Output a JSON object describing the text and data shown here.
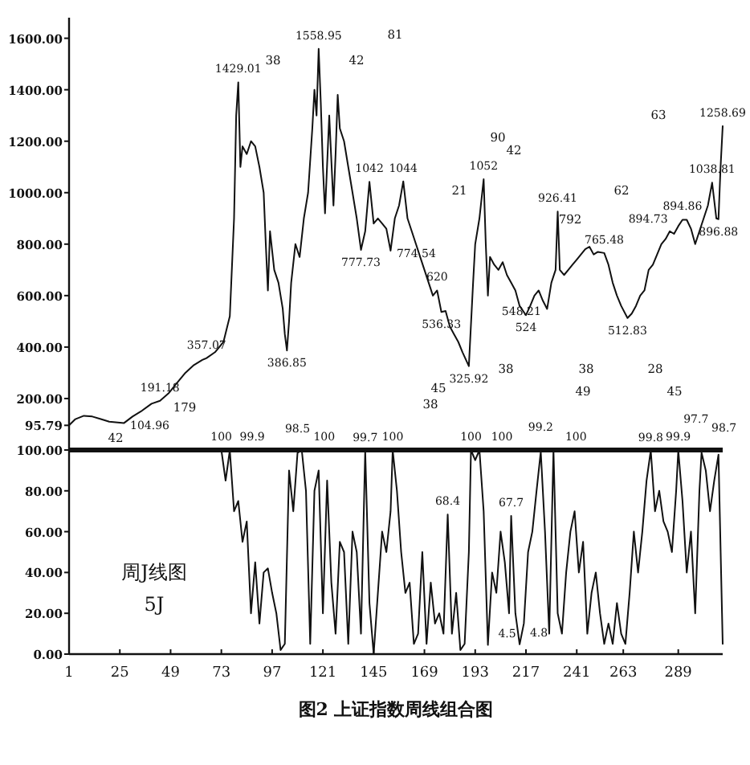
{
  "chart_data": [
    {
      "type": "line",
      "xlim": [
        1,
        310
      ],
      "ylim": [
        0,
        1680
      ],
      "tick_labels": "y",
      "yticks": [
        {
          "value": 95.79,
          "label": "95.79"
        },
        {
          "value": 200,
          "label": "200.00"
        },
        {
          "value": 400,
          "label": "400.00"
        },
        {
          "value": 600,
          "label": "600.00"
        },
        {
          "value": 800,
          "label": "800.00"
        },
        {
          "value": 1000,
          "label": "1000.00"
        },
        {
          "value": 1200,
          "label": "1200.00"
        },
        {
          "value": 1400,
          "label": "1400.00"
        },
        {
          "value": 1600,
          "label": "1600.00"
        }
      ],
      "series": [
        {
          "color": "#111111",
          "x": [
            1,
            4,
            8,
            12,
            16,
            20,
            27,
            31,
            35,
            40,
            44,
            48,
            52,
            56,
            60,
            64,
            66,
            70,
            74,
            77,
            79,
            80,
            81,
            82,
            83,
            85,
            87,
            89,
            91,
            93,
            94,
            95,
            96,
            98,
            100,
            102,
            103,
            104,
            105,
            106,
            108,
            110,
            112,
            114,
            116,
            117,
            118,
            119,
            120,
            121,
            122,
            124,
            126,
            127,
            128,
            129,
            131,
            133,
            135,
            137,
            139,
            141,
            143,
            145,
            147,
            149,
            151,
            153,
            155,
            157,
            159,
            161,
            163,
            165,
            167,
            169,
            171,
            173,
            175,
            177,
            179,
            181,
            183,
            185,
            187,
            190,
            192,
            193,
            195,
            197,
            198,
            199,
            200,
            202,
            204,
            206,
            208,
            210,
            212,
            214,
            217,
            219,
            221,
            223,
            225,
            227,
            229,
            231,
            232,
            233,
            235,
            237,
            239,
            241,
            243,
            245,
            247,
            249,
            251,
            254,
            256,
            258,
            260,
            262,
            265,
            267,
            269,
            271,
            273,
            275,
            277,
            279,
            281,
            283,
            285,
            287,
            289,
            291,
            293,
            295,
            297,
            299,
            301,
            303,
            305,
            307,
            308,
            309,
            310
          ],
          "values": [
            95.79,
            120,
            133,
            130,
            120,
            110,
            104.96,
            130,
            150,
            180,
            191.18,
            220,
            260,
            300,
            330,
            350,
            357.07,
            380,
            420,
            520,
            900,
            1300,
            1429.01,
            1100,
            1180,
            1150,
            1200,
            1180,
            1100,
            1000,
            800,
            620,
            850,
            700,
            650,
            550,
            450,
            386.85,
            500,
            650,
            800,
            750,
            900,
            1000,
            1250,
            1400,
            1300,
            1558.95,
            1350,
            1100,
            920,
            1300,
            950,
            1150,
            1380,
            1250,
            1200,
            1100,
            1000,
            900,
            777.73,
            850,
            1042,
            880,
            900,
            880,
            860,
            774.54,
            900,
            950,
            1044,
            900,
            850,
            800,
            750,
            700,
            650,
            600,
            620,
            536.33,
            540,
            480,
            450,
            420,
            380,
            325.92,
            650,
            800,
            900,
            1052,
            800,
            600,
            750,
            720,
            700,
            730,
            680,
            650,
            620,
            560,
            524,
            560,
            600,
            620,
            580,
            548.21,
            650,
            700,
            926.41,
            700,
            680,
            700,
            720,
            740,
            760,
            780,
            790,
            760,
            770,
            765.48,
            720,
            650,
            600,
            560,
            512.83,
            530,
            560,
            600,
            620,
            700,
            720,
            760,
            800,
            820,
            850,
            840,
            870,
            894.86,
            894.73,
            860,
            800,
            850,
            900,
            950,
            1038.81,
            900,
            896.88,
            1100,
            1258.69
          ],
          "value_labels": [
            null,
            null,
            null,
            null,
            null,
            null,
            "104.96",
            null,
            null,
            null,
            "191.18",
            null,
            null,
            null,
            null,
            null,
            "357.07",
            null,
            null,
            null,
            null,
            null,
            "1429.01",
            null,
            null,
            null,
            null,
            null,
            null,
            null,
            null,
            null,
            null,
            null,
            null,
            null,
            null,
            "386.85",
            null,
            null,
            null,
            null,
            null,
            null,
            null,
            null,
            null,
            "1558.95",
            null,
            null,
            null,
            null,
            null,
            null,
            null,
            null,
            null,
            null,
            null,
            null,
            "777.73",
            null,
            "1042",
            null,
            null,
            null,
            null,
            "774.54",
            null,
            null,
            "1044",
            null,
            null,
            null,
            null,
            null,
            null,
            null,
            "620",
            "536.33",
            null,
            null,
            null,
            null,
            null,
            "325.92",
            null,
            null,
            null,
            "1052",
            null,
            null,
            null,
            null,
            null,
            null,
            null,
            null,
            null,
            null,
            "524",
            null,
            null,
            null,
            null,
            "548.21",
            null,
            null,
            "926.41",
            null,
            null,
            null,
            null,
            null,
            null,
            null,
            null,
            null,
            null,
            "765.48",
            null,
            null,
            null,
            null,
            "512.83",
            null,
            null,
            null,
            null,
            null,
            null,
            null,
            null,
            null,
            null,
            null,
            null,
            "894.86",
            "894.73",
            null,
            null,
            null,
            null,
            null,
            "1038.81",
            null,
            "896.88",
            null,
            "1258.69"
          ]
        }
      ],
      "annotations": [
        "179",
        "42",
        "38",
        "42",
        "81",
        "90",
        "42",
        "21",
        "63",
        "62",
        "45",
        "38",
        "38",
        "38",
        "28",
        "49",
        "45",
        "792"
      ]
    },
    {
      "type": "line",
      "xlim": [
        1,
        310
      ],
      "ylim": [
        0,
        100
      ],
      "title": "图2  上证指数周线组合图",
      "xticks": [
        1,
        25,
        49,
        73,
        97,
        121,
        145,
        169,
        193,
        217,
        241,
        263,
        289
      ],
      "yticks": [
        {
          "value": 0,
          "label": "0.00"
        },
        {
          "value": 20,
          "label": "20.00"
        },
        {
          "value": 40,
          "label": "40.00"
        },
        {
          "value": 60,
          "label": "60.00"
        },
        {
          "value": 80,
          "label": "80.00"
        },
        {
          "value": 100,
          "label": "100.00"
        }
      ],
      "annotations": [
        "周J线图",
        "5J"
      ],
      "series": [
        {
          "color": "#111111",
          "x": [
            1,
            73,
            75,
            77,
            79,
            81,
            83,
            85,
            87,
            89,
            91,
            93,
            95,
            97,
            99,
            101,
            103,
            105,
            107,
            109,
            111,
            113,
            115,
            117,
            119,
            121,
            123,
            125,
            127,
            129,
            131,
            133,
            135,
            137,
            139,
            141,
            143,
            145,
            147,
            149,
            151,
            153,
            154,
            156,
            158,
            160,
            162,
            164,
            166,
            168,
            170,
            172,
            174,
            176,
            178,
            180,
            182,
            184,
            186,
            188,
            190,
            191,
            193,
            195,
            197,
            199,
            201,
            203,
            205,
            207,
            209,
            210,
            212,
            214,
            216,
            218,
            220,
            222,
            224,
            226,
            228,
            230,
            232,
            234,
            236,
            238,
            240,
            242,
            244,
            246,
            248,
            250,
            252,
            254,
            256,
            258,
            260,
            262,
            264,
            266,
            268,
            270,
            272,
            274,
            276,
            278,
            280,
            282,
            284,
            286,
            288,
            289,
            291,
            293,
            295,
            297,
            299,
            300,
            302,
            304,
            306,
            308,
            310
          ],
          "values": [
            100,
            100,
            85,
            99.9,
            70,
            75,
            55,
            65,
            20,
            45,
            15,
            40,
            42,
            30,
            20,
            2,
            5,
            90,
            70,
            98.5,
            100,
            80,
            5,
            80,
            90,
            20,
            85,
            35,
            10,
            55,
            50,
            5,
            60,
            50,
            10,
            99.7,
            25,
            0,
            30,
            60,
            50,
            70,
            100,
            80,
            50,
            30,
            35,
            5,
            10,
            50,
            5,
            35,
            15,
            20,
            10,
            68.4,
            10,
            30,
            2,
            5,
            50,
            100,
            95,
            100,
            70,
            4.5,
            40,
            30,
            60,
            45,
            20,
            67.7,
            20,
            4.8,
            15,
            50,
            60,
            80,
            99.2,
            60,
            10,
            100,
            20,
            10,
            40,
            60,
            70,
            40,
            55,
            10,
            30,
            40,
            20,
            5,
            15,
            5,
            25,
            10,
            5,
            30,
            60,
            40,
            60,
            85,
            99.8,
            70,
            80,
            65,
            60,
            50,
            80,
            99.9,
            75,
            40,
            60,
            20,
            80,
            98.7,
            90,
            70,
            85,
            97.7,
            5
          ],
          "value_labels": [
            null,
            "100",
            null,
            "99.9",
            null,
            null,
            null,
            null,
            null,
            null,
            null,
            null,
            null,
            null,
            null,
            null,
            null,
            null,
            null,
            "98.5",
            "100",
            null,
            null,
            null,
            null,
            null,
            null,
            null,
            null,
            null,
            null,
            null,
            null,
            null,
            null,
            "99.7",
            null,
            null,
            null,
            null,
            null,
            null,
            "100",
            null,
            null,
            null,
            null,
            null,
            null,
            null,
            null,
            null,
            null,
            null,
            null,
            "68.4",
            null,
            null,
            null,
            null,
            null,
            "100",
            null,
            "100",
            null,
            "4.5",
            null,
            null,
            null,
            null,
            null,
            "67.7",
            null,
            "4.8",
            null,
            null,
            null,
            null,
            "99.2",
            null,
            null,
            "100",
            null,
            null,
            null,
            null,
            null,
            null,
            null,
            null,
            null,
            null,
            null,
            null,
            null,
            null,
            null,
            null,
            null,
            null,
            null,
            null,
            null,
            null,
            "99.8",
            null,
            null,
            null,
            null,
            null,
            null,
            "99.9",
            null,
            null,
            null,
            null,
            null,
            "98.7",
            null,
            null,
            null,
            "97.7",
            null
          ]
        }
      ]
    }
  ]
}
